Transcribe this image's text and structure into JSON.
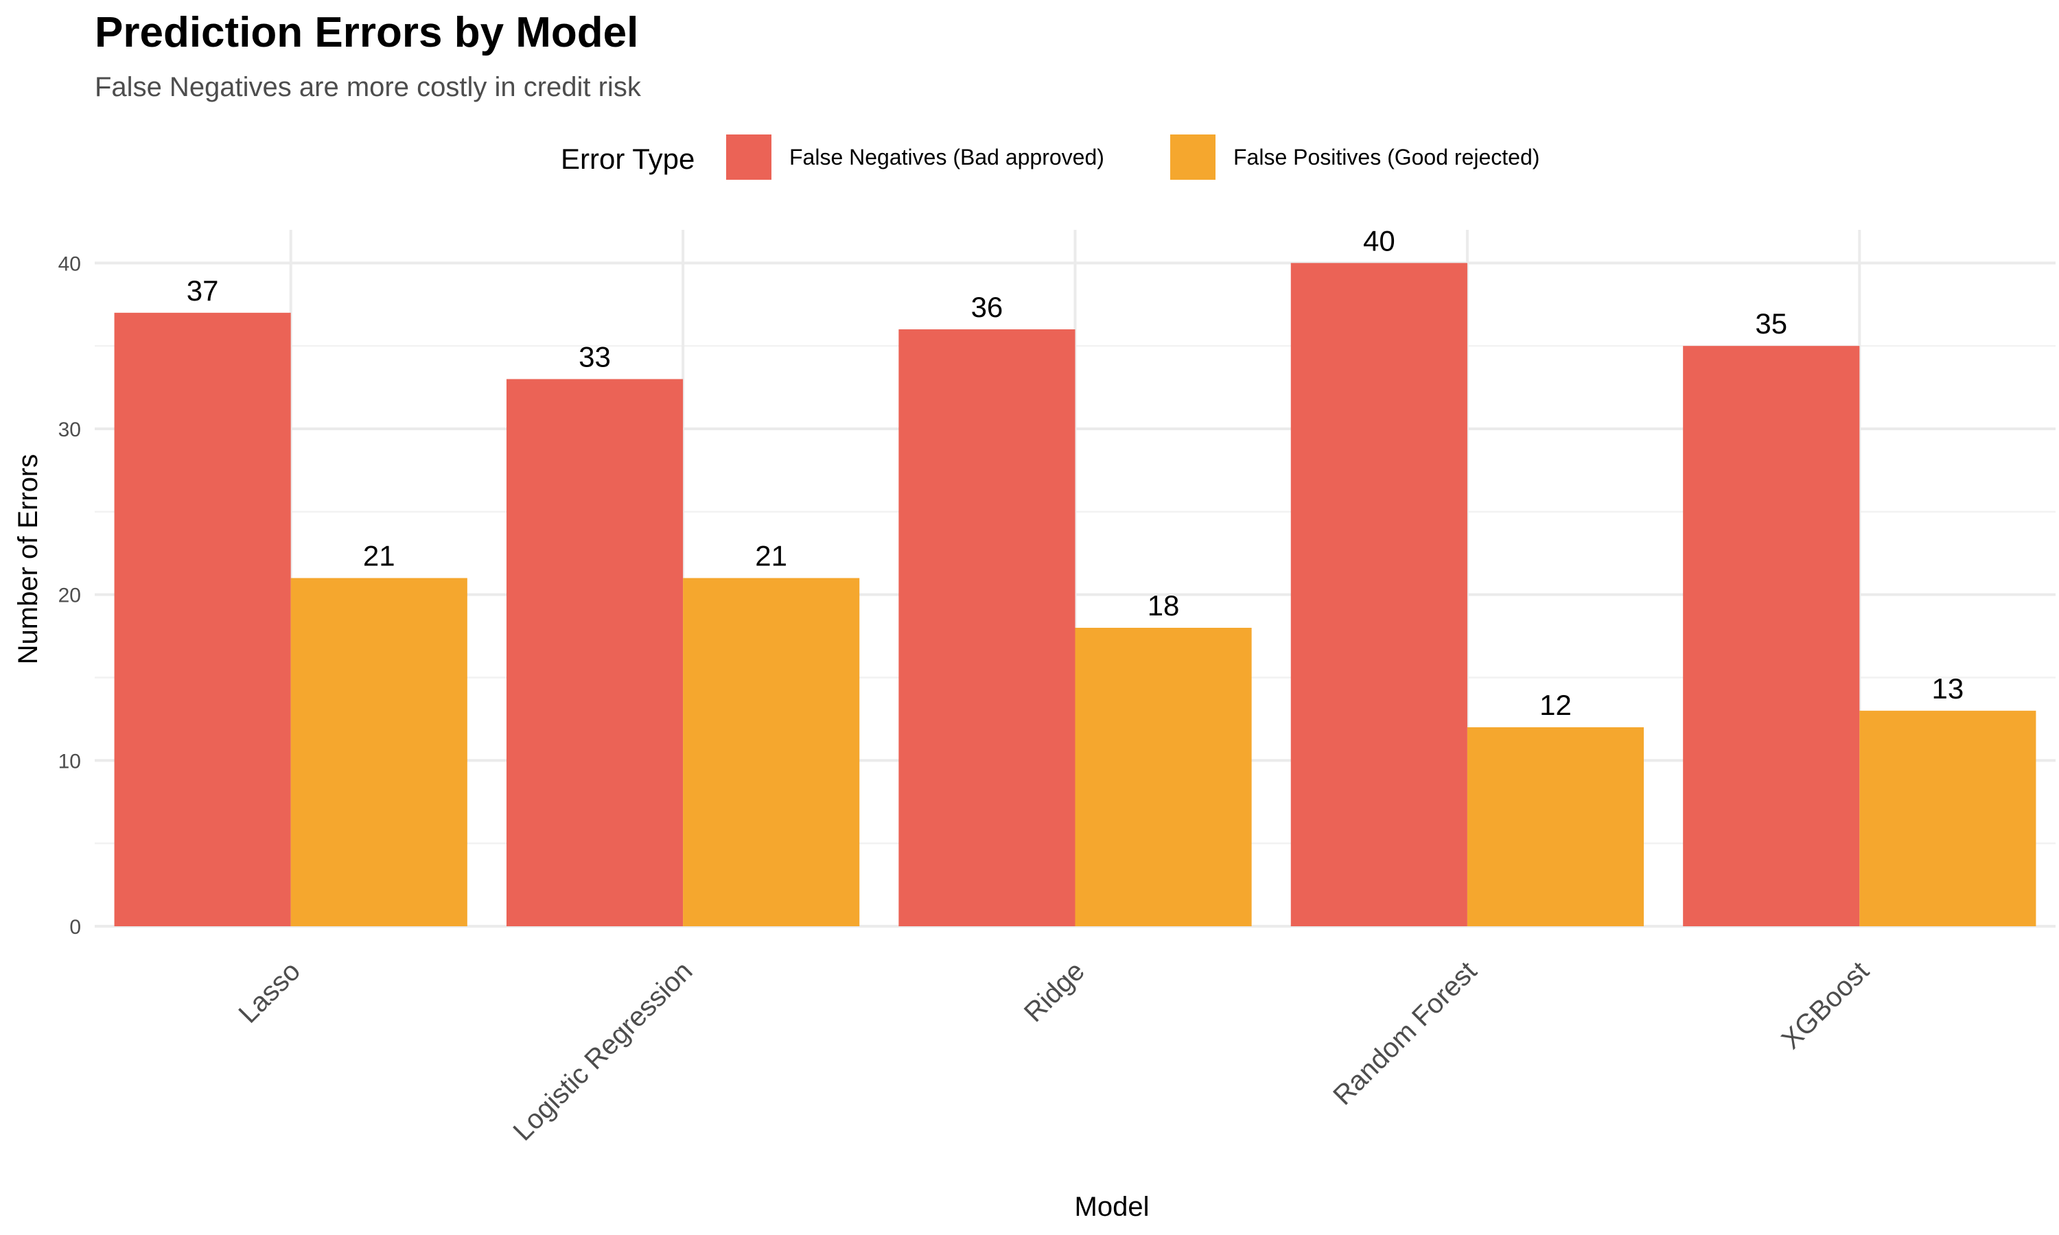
{
  "chart_data": {
    "type": "bar",
    "title": "Prediction Errors by Model",
    "subtitle": "False Negatives are more costly in credit risk",
    "xlabel": "Model",
    "ylabel": "Number of Errors",
    "categories": [
      "Lasso",
      "Logistic Regression",
      "Ridge",
      "Random Forest",
      "XGBoost"
    ],
    "series": [
      {
        "name": "False Negatives (Bad approved)",
        "color": "#EB6356",
        "values": [
          37,
          33,
          36,
          40,
          35
        ]
      },
      {
        "name": "False Positives (Good rejected)",
        "color": "#F5A72E",
        "values": [
          21,
          21,
          18,
          12,
          13
        ]
      }
    ],
    "ylim": [
      0,
      42
    ],
    "yticks": [
      "0",
      "10",
      "20",
      "30",
      "40"
    ],
    "grid": true,
    "legend": {
      "title": "Error Type",
      "position": "top"
    },
    "data_labels": true
  }
}
